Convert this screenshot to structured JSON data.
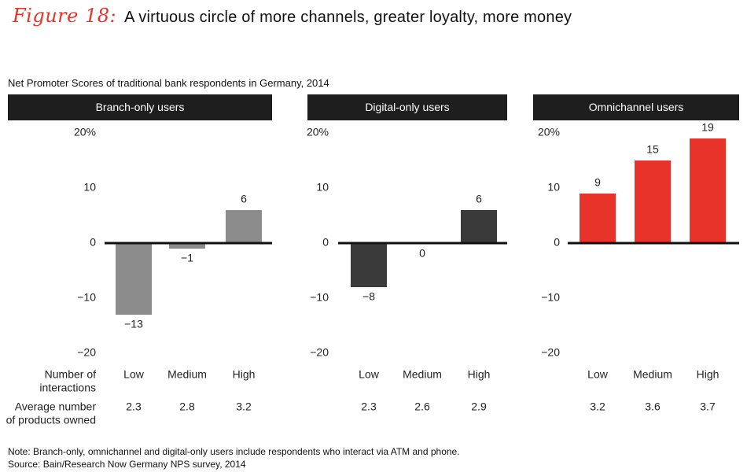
{
  "figure": {
    "label": "Figure 18:",
    "title": "A virtuous circle of more channels, greater loyalty, more money",
    "subtitle": "Net Promoter Scores of traditional bank respondents in Germany, 2014"
  },
  "colors": {
    "branch": "#8c8c8c",
    "digital": "#3a3a3a",
    "omni": "#e8332a",
    "axis": "#111111"
  },
  "row_labels": {
    "interactions": [
      "Number of",
      "interactions"
    ],
    "products": [
      "Average number",
      "of products owned"
    ]
  },
  "chart_data": [
    {
      "type": "bar",
      "title": "Branch-only users",
      "categories": [
        "Low",
        "Medium",
        "High"
      ],
      "values": [
        -13,
        -1,
        6
      ],
      "data_labels": [
        "−13",
        "−1",
        "6"
      ],
      "products_owned": [
        "2.3",
        "2.8",
        "3.2"
      ],
      "ylim": [
        -20,
        20
      ],
      "yticks": [
        "20%",
        "10",
        "0",
        "−10",
        "−20"
      ],
      "color_key": "branch"
    },
    {
      "type": "bar",
      "title": "Digital-only users",
      "categories": [
        "Low",
        "Medium",
        "High"
      ],
      "values": [
        -8,
        0,
        6
      ],
      "data_labels": [
        "−8",
        "0",
        "6"
      ],
      "products_owned": [
        "2.3",
        "2.6",
        "2.9"
      ],
      "ylim": [
        -20,
        20
      ],
      "yticks": [
        "20%",
        "10",
        "0",
        "−10",
        "−20"
      ],
      "color_key": "digital"
    },
    {
      "type": "bar",
      "title": "Omnichannel users",
      "categories": [
        "Low",
        "Medium",
        "High"
      ],
      "values": [
        9,
        15,
        19
      ],
      "data_labels": [
        "9",
        "15",
        "19"
      ],
      "products_owned": [
        "3.2",
        "3.6",
        "3.7"
      ],
      "ylim": [
        -20,
        20
      ],
      "yticks": [
        "20%",
        "10",
        "0",
        "−10",
        "−20"
      ],
      "color_key": "omni"
    }
  ],
  "footnotes": {
    "note": "Note: Branch-only, omnichannel and digital-only users include respondents who interact via ATM and phone.",
    "source": "Source: Bain/Research Now Germany NPS survey, 2014"
  }
}
